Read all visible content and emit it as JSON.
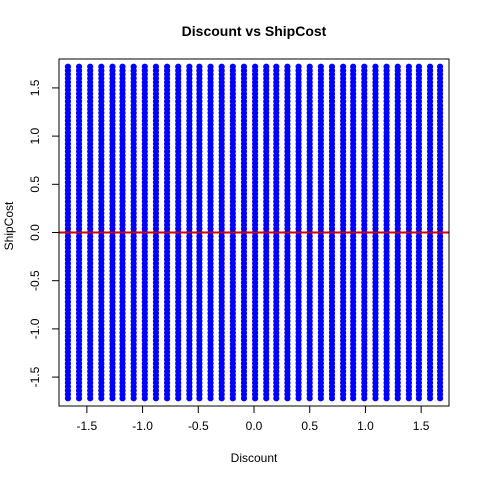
{
  "chart_data": {
    "type": "scatter",
    "title": "Discount vs ShipCost",
    "xlabel": "Discount",
    "ylabel": "ShipCost",
    "xlim": [
      -1.75,
      1.75
    ],
    "ylim": [
      -1.8,
      1.8
    ],
    "x_ticks": [
      -1.5,
      -1.0,
      -0.5,
      0.0,
      0.5,
      1.0,
      1.5
    ],
    "x_tick_labels": [
      "-1.5",
      "-1.0",
      "-0.5",
      "0.0",
      "0.5",
      "1.0",
      "1.5"
    ],
    "y_ticks": [
      -1.5,
      -1.0,
      -0.5,
      0.0,
      0.5,
      1.0,
      1.5
    ],
    "y_tick_labels": [
      "-1.5",
      "-1.0",
      "-0.5",
      "0.0",
      "0.5",
      "1.0",
      "1.5"
    ],
    "grid": false,
    "point_color": "#0000ff",
    "reference_line": {
      "type": "horizontal",
      "y": 0,
      "color": "#cc0000"
    },
    "series": [
      {
        "columns_x": [
          -1.67,
          -1.57,
          -1.47,
          -1.37,
          -1.27,
          -1.18,
          -1.08,
          -0.98,
          -0.88,
          -0.78,
          -0.68,
          -0.58,
          -0.49,
          -0.39,
          -0.29,
          -0.19,
          -0.09,
          0.01,
          0.11,
          0.2,
          0.3,
          0.4,
          0.5,
          0.6,
          0.7,
          0.8,
          0.89,
          0.99,
          1.09,
          1.19,
          1.29,
          1.39,
          1.48,
          1.58,
          1.67
        ],
        "y_min": -1.72,
        "y_max": 1.75
      }
    ]
  }
}
